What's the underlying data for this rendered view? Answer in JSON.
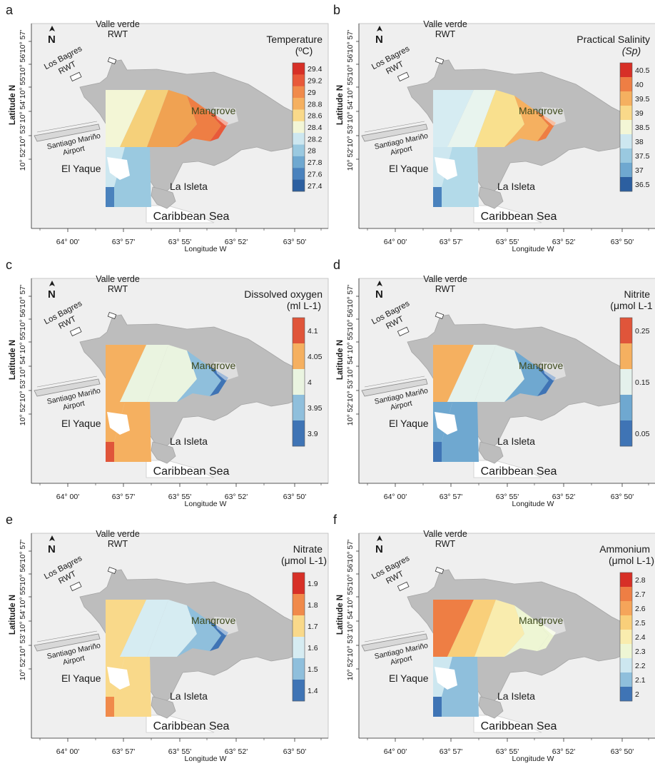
{
  "axes": {
    "x_label": "Longitude W",
    "y_label": "Latitude N",
    "x_ticks": [
      "64° 00'",
      "63° 57'",
      "63° 55'",
      "63° 52'",
      "63° 50'"
    ],
    "y_ticks": [
      "10° 57'",
      "10° 56'",
      "10° 55'",
      "10° 54'",
      "10° 53'",
      "10° 52'"
    ]
  },
  "places": {
    "valle_verde": "Valle verde",
    "rwt": "RWT",
    "los_bagres": "Los Bagres",
    "airport_line1": "Santiago Mariño",
    "airport_line2": "Airport",
    "el_yaque": "El Yaque",
    "la_isleta": "La Isleta",
    "mangrove": "Mangrove",
    "sea": "Caribbean Sea"
  },
  "north_arrow": {
    "label": "N",
    "icon": "north-arrow-icon"
  },
  "colors": {
    "land": "#bdbdbd",
    "sea": "#efefef",
    "frame": "#333333"
  },
  "panels": [
    {
      "letter": "a",
      "title_lines": [
        "Temperature",
        "(ºC)"
      ],
      "title_italic_second": false,
      "legend_ticks": [
        "29.4",
        "29.2",
        "29",
        "28.8",
        "28.6",
        "28.4",
        "28.2",
        "28",
        "27.8",
        "27.6",
        "27.4"
      ],
      "legend_colors": [
        "#d73027",
        "#e8593a",
        "#f08a4b",
        "#f5b060",
        "#f9d98a",
        "#f3f6d6",
        "#cde7f0",
        "#9ac9e0",
        "#6fa8d0",
        "#4a82bd",
        "#2c5fa0"
      ],
      "zone_colors": [
        "#f3f6d6",
        "#f5d07a",
        "#f0a252",
        "#ee7e44",
        "#e8593a"
      ],
      "estuary_colors": [
        "#cde7f0",
        "#9ac9e0",
        "#4a82bd"
      ]
    },
    {
      "letter": "b",
      "title_lines": [
        "Practical Salinity",
        "(Sp)"
      ],
      "title_italic_second": true,
      "legend_ticks": [
        "40.5",
        "40",
        "39.5",
        "39",
        "38.5",
        "38",
        "37.5",
        "37",
        "36.5"
      ],
      "legend_colors": [
        "#d73027",
        "#ee7e44",
        "#f5b060",
        "#f9d98a",
        "#f3f6d6",
        "#cde7f0",
        "#9ac9e0",
        "#6fa8d0",
        "#2c5fa0"
      ],
      "zone_colors": [
        "#d6ecf2",
        "#e8f4ee",
        "#f9e08e",
        "#f5b060",
        "#ee7e44"
      ],
      "estuary_colors": [
        "#cde7f0",
        "#b3dae9",
        "#4a82bd"
      ]
    },
    {
      "letter": "c",
      "title_lines": [
        "Dissolved oxygen",
        "(ml L-1)"
      ],
      "title_italic_second": false,
      "legend_ticks": [
        "4.1",
        "4.05",
        "4",
        "3.95",
        "3.9"
      ],
      "legend_colors": [
        "#e0553a",
        "#f5b060",
        "#eaf4e0",
        "#8fbfdc",
        "#3f74b5"
      ],
      "zone_colors": [
        "#f5b060",
        "#eaf4e0",
        "#eaf4e0",
        "#8fbfdc",
        "#3f74b5"
      ],
      "estuary_colors": [
        "#f5b060",
        "#f5b060",
        "#e0553a"
      ]
    },
    {
      "letter": "d",
      "title_lines": [
        "Nitrite",
        "(μmol L-1"
      ],
      "title_italic_second": false,
      "legend_ticks": [
        "0.25",
        "0.15",
        "0.05"
      ],
      "legend_colors": [
        "#e0553a",
        "#f5b060",
        "#e4f1ec",
        "#6fa8d0",
        "#3f74b5"
      ],
      "zone_colors": [
        "#f5b060",
        "#e4f1ec",
        "#e4f1ec",
        "#6fa8d0",
        "#3f74b5"
      ],
      "estuary_colors": [
        "#6fa8d0",
        "#6fa8d0",
        "#3f74b5"
      ]
    },
    {
      "letter": "e",
      "title_lines": [
        "Nitrate",
        "(μmol L-1)"
      ],
      "title_italic_second": false,
      "legend_ticks": [
        "1.9",
        "1.8",
        "1.7",
        "1.6",
        "1.5",
        "1.4"
      ],
      "legend_colors": [
        "#d73027",
        "#f08a4b",
        "#f9d98a",
        "#d6ecf2",
        "#8fbfdc",
        "#3f74b5"
      ],
      "zone_colors": [
        "#f9d98a",
        "#d6ecf2",
        "#d6ecf2",
        "#8fbfdc",
        "#3f74b5"
      ],
      "estuary_colors": [
        "#f9d98a",
        "#f9d98a",
        "#f08a4b"
      ]
    },
    {
      "letter": "f",
      "title_lines": [
        "Ammonium",
        "(μmol L-1)"
      ],
      "title_italic_second": false,
      "legend_ticks": [
        "2.8",
        "2.7",
        "2.6",
        "2.5",
        "2.4",
        "2.3",
        "2.2",
        "2.1",
        "2"
      ],
      "legend_colors": [
        "#d73027",
        "#ee7e44",
        "#f5a55a",
        "#f9cf7a",
        "#f9ecae",
        "#eef6d4",
        "#cde7f0",
        "#8fbfdc",
        "#3f74b5"
      ],
      "zone_colors": [
        "#ee7e44",
        "#f9cf7a",
        "#f9ecae",
        "#eef6d4",
        "#eef6d4"
      ],
      "estuary_colors": [
        "#cde7f0",
        "#8fbfdc",
        "#3f74b5"
      ]
    }
  ]
}
